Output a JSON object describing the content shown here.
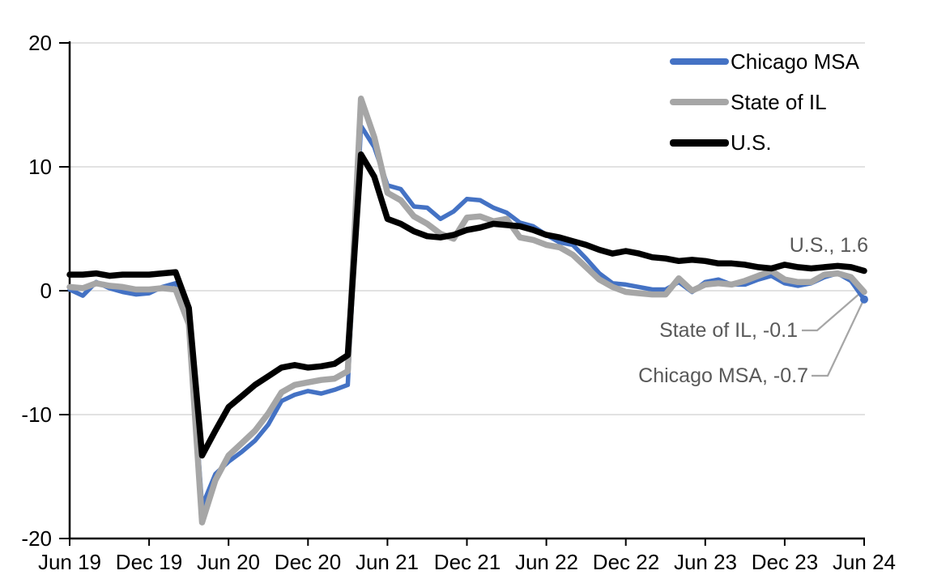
{
  "chart_data": {
    "type": "line",
    "title": "",
    "xlabel": "",
    "ylabel": "",
    "ylim": [
      -20,
      20
    ],
    "grid": "horizontal",
    "gridline_color": "#d9d9d9",
    "axis_color": "#000000",
    "legend_position": "top-right",
    "y_ticks": [
      {
        "value": 20,
        "label": "20"
      },
      {
        "value": 10,
        "label": "10"
      },
      {
        "value": 0,
        "label": "0"
      },
      {
        "value": -10,
        "label": "-10"
      },
      {
        "value": -20,
        "label": "-20"
      }
    ],
    "x_tick_labels": [
      "Jun 19",
      "Dec 19",
      "Jun 20",
      "Dec 20",
      "Jun 21",
      "Dec 21",
      "Jun 22",
      "Dec 22",
      "Jun 23",
      "Dec 23",
      "Jun 24"
    ],
    "x": [
      "Jun 19",
      "Jul 19",
      "Aug 19",
      "Sep 19",
      "Oct 19",
      "Nov 19",
      "Dec 19",
      "Jan 20",
      "Feb 20",
      "Mar 20",
      "Apr 20",
      "May 20",
      "Jun 20",
      "Jul 20",
      "Aug 20",
      "Sep 20",
      "Oct 20",
      "Nov 20",
      "Dec 20",
      "Jan 21",
      "Feb 21",
      "Mar 21",
      "Apr 21",
      "May 21",
      "Jun 21",
      "Jul 21",
      "Aug 21",
      "Sep 21",
      "Oct 21",
      "Nov 21",
      "Dec 21",
      "Jan 22",
      "Feb 22",
      "Mar 22",
      "Apr 22",
      "May 22",
      "Jun 22",
      "Jul 22",
      "Aug 22",
      "Sep 22",
      "Oct 22",
      "Nov 22",
      "Dec 22",
      "Jan 23",
      "Feb 23",
      "Mar 23",
      "Apr 23",
      "May 23",
      "Jun 23",
      "Jul 23",
      "Aug 23",
      "Sep 23",
      "Oct 23",
      "Nov 23",
      "Dec 23",
      "Jan 24",
      "Feb 24",
      "Mar 24",
      "Apr 24",
      "May 24",
      "Jun 24"
    ],
    "series": [
      {
        "name": "Chicago MSA",
        "color": "#4472c4",
        "stroke_width": 5.5,
        "end_dot": true,
        "values": [
          0.1,
          -0.4,
          0.7,
          0.2,
          -0.1,
          -0.3,
          -0.2,
          0.3,
          0.6,
          -2.4,
          -17.4,
          -14.8,
          -13.8,
          -13.0,
          -12.1,
          -10.8,
          -8.9,
          -8.4,
          -8.1,
          -8.3,
          -8.0,
          -7.6,
          13.3,
          11.6,
          8.5,
          8.2,
          6.8,
          6.7,
          5.8,
          6.4,
          7.4,
          7.3,
          6.7,
          6.3,
          5.5,
          5.2,
          4.5,
          3.9,
          3.7,
          2.6,
          1.4,
          0.6,
          0.5,
          0.3,
          0.1,
          0.1,
          0.7,
          -0.1,
          0.7,
          0.9,
          0.5,
          0.5,
          0.9,
          1.2,
          0.6,
          0.4,
          0.6,
          1.1,
          1.4,
          0.8,
          -0.7
        ]
      },
      {
        "name": "State of IL",
        "color": "#a6a6a6",
        "stroke_width": 7.5,
        "end_dot": false,
        "values": [
          0.3,
          0.2,
          0.6,
          0.4,
          0.3,
          0.1,
          0.1,
          0.2,
          0.1,
          -2.7,
          -18.7,
          -15.3,
          -13.3,
          -12.3,
          -11.3,
          -9.9,
          -8.2,
          -7.6,
          -7.4,
          -7.2,
          -7.1,
          -6.5,
          15.5,
          12.4,
          7.9,
          7.3,
          6.0,
          5.4,
          4.6,
          4.2,
          5.9,
          6.0,
          5.6,
          5.8,
          4.3,
          4.1,
          3.7,
          3.5,
          2.9,
          1.9,
          0.9,
          0.3,
          -0.1,
          -0.2,
          -0.3,
          -0.3,
          1.0,
          0.0,
          0.5,
          0.6,
          0.5,
          0.8,
          1.2,
          1.6,
          0.9,
          0.7,
          0.7,
          1.3,
          1.4,
          1.1,
          -0.1
        ]
      },
      {
        "name": "U.S.",
        "color": "#000000",
        "stroke_width": 7.5,
        "end_dot": false,
        "values": [
          1.3,
          1.3,
          1.4,
          1.2,
          1.3,
          1.3,
          1.3,
          1.4,
          1.5,
          -1.4,
          -13.3,
          -11.3,
          -9.4,
          -8.5,
          -7.6,
          -6.9,
          -6.2,
          -6.0,
          -6.2,
          -6.1,
          -5.9,
          -5.2,
          11.0,
          9.2,
          5.8,
          5.4,
          4.8,
          4.4,
          4.3,
          4.5,
          4.9,
          5.1,
          5.4,
          5.3,
          5.2,
          4.9,
          4.5,
          4.3,
          4.0,
          3.7,
          3.3,
          3.0,
          3.2,
          3.0,
          2.7,
          2.6,
          2.4,
          2.5,
          2.4,
          2.2,
          2.2,
          2.1,
          1.9,
          1.8,
          2.1,
          1.9,
          1.8,
          1.9,
          2.0,
          1.9,
          1.6
        ]
      }
    ],
    "annotations": [
      {
        "text": "U.S., 1.6",
        "series": "U.S.",
        "value": 1.6,
        "color": "#595959"
      },
      {
        "text": "State of IL, -0.1",
        "series": "State of IL",
        "value": -0.1,
        "color": "#595959"
      },
      {
        "text": "Chicago MSA, -0.7",
        "series": "Chicago MSA",
        "value": -0.7,
        "color": "#595959"
      }
    ]
  }
}
